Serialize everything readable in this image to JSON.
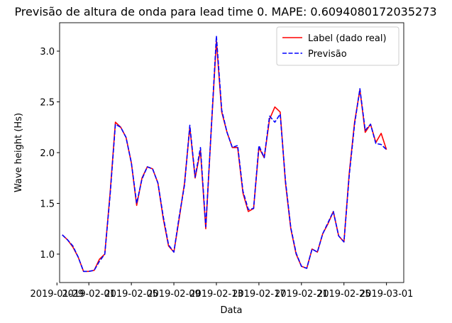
{
  "chart_data": {
    "type": "line",
    "title": "Previsão de altura de onda para lead time 0. MAPE: 0.6094080172035273",
    "x_label": "Data",
    "y_label": "Wave height (Hs)",
    "x": [
      "2019-01-29 12:00",
      "2019-01-30 00:00",
      "2019-01-30 12:00",
      "2019-01-31 00:00",
      "2019-01-31 12:00",
      "2019-02-01 00:00",
      "2019-02-01 12:00",
      "2019-02-02 00:00",
      "2019-02-02 12:00",
      "2019-02-03 00:00",
      "2019-02-03 12:00",
      "2019-02-04 00:00",
      "2019-02-04 12:00",
      "2019-02-05 00:00",
      "2019-02-05 12:00",
      "2019-02-06 00:00",
      "2019-02-06 12:00",
      "2019-02-07 00:00",
      "2019-02-07 12:00",
      "2019-02-08 00:00",
      "2019-02-08 12:00",
      "2019-02-09 00:00",
      "2019-02-09 12:00",
      "2019-02-10 00:00",
      "2019-02-10 12:00",
      "2019-02-11 00:00",
      "2019-02-11 12:00",
      "2019-02-12 00:00",
      "2019-02-12 12:00",
      "2019-02-13 00:00",
      "2019-02-13 12:00",
      "2019-02-14 00:00",
      "2019-02-14 12:00",
      "2019-02-15 00:00",
      "2019-02-15 12:00",
      "2019-02-16 00:00",
      "2019-02-16 12:00",
      "2019-02-17 00:00",
      "2019-02-17 12:00",
      "2019-02-18 00:00",
      "2019-02-18 12:00",
      "2019-02-19 00:00",
      "2019-02-19 12:00",
      "2019-02-20 00:00",
      "2019-02-20 12:00",
      "2019-02-21 00:00",
      "2019-02-21 12:00",
      "2019-02-22 00:00",
      "2019-02-22 12:00",
      "2019-02-23 00:00",
      "2019-02-23 12:00",
      "2019-02-24 00:00",
      "2019-02-24 12:00",
      "2019-02-25 00:00",
      "2019-02-25 12:00",
      "2019-02-26 00:00",
      "2019-02-26 12:00",
      "2019-02-27 00:00",
      "2019-02-27 12:00",
      "2019-02-28 00:00",
      "2019-02-28 12:00",
      "2019-03-01 00:00"
    ],
    "series": [
      {
        "name": "Label (dado real)",
        "color": "#ff0000",
        "dash": false,
        "values": [
          1.19,
          1.14,
          1.07,
          0.97,
          0.83,
          0.83,
          0.84,
          0.95,
          1.0,
          1.6,
          2.3,
          2.25,
          2.15,
          1.9,
          1.48,
          1.75,
          1.86,
          1.84,
          1.7,
          1.35,
          1.08,
          1.02,
          1.35,
          1.7,
          2.25,
          1.75,
          2.02,
          1.25,
          2.2,
          3.1,
          2.4,
          2.2,
          2.05,
          2.05,
          1.6,
          1.42,
          1.45,
          2.05,
          1.95,
          2.33,
          2.45,
          2.4,
          1.7,
          1.25,
          1.0,
          0.88,
          0.86,
          1.05,
          1.02,
          1.2,
          1.3,
          1.42,
          1.18,
          1.12,
          1.8,
          2.3,
          2.62,
          2.2,
          2.28,
          2.1,
          2.19,
          2.03
        ]
      },
      {
        "name": "Previsão",
        "color": "#0000ff",
        "dash": true,
        "values": [
          1.19,
          1.14,
          1.08,
          0.97,
          0.83,
          0.83,
          0.84,
          0.93,
          1.0,
          1.58,
          2.28,
          2.25,
          2.15,
          1.9,
          1.5,
          1.74,
          1.86,
          1.84,
          1.7,
          1.37,
          1.09,
          1.02,
          1.37,
          1.68,
          2.27,
          1.76,
          2.05,
          1.27,
          2.2,
          3.15,
          2.42,
          2.2,
          2.05,
          2.07,
          1.62,
          1.44,
          1.45,
          2.07,
          1.95,
          2.36,
          2.3,
          2.38,
          1.72,
          1.26,
          1.01,
          0.88,
          0.86,
          1.05,
          1.02,
          1.2,
          1.31,
          1.42,
          1.18,
          1.12,
          1.78,
          2.28,
          2.63,
          2.22,
          2.28,
          2.09,
          2.08,
          2.03
        ]
      }
    ],
    "xlim": [
      "2019-01-29 06:00",
      "2019-03-02 15:00"
    ],
    "xticks": [
      "2019-01-29",
      "2019-02-01",
      "2019-02-05",
      "2019-02-09",
      "2019-02-13",
      "2019-02-17",
      "2019-02-21",
      "2019-02-25",
      "2019-03-01"
    ],
    "ylim": [
      0.72,
      3.28
    ],
    "yticks": [
      {
        "value": 1.0,
        "label": "1.0"
      },
      1.5,
      {
        "value": 2.0,
        "label": "2.0"
      },
      2.5,
      {
        "value": 3.0,
        "label": "3.0"
      }
    ],
    "grid": false,
    "legend": "upper right"
  }
}
